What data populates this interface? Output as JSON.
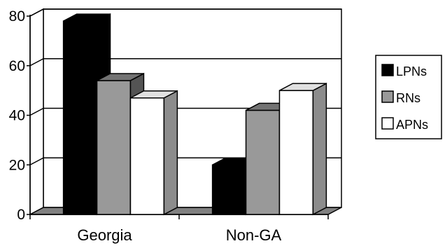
{
  "chart_data": {
    "type": "bar",
    "style": "3d-clustered-column",
    "categories": [
      "Georgia",
      "Non-GA"
    ],
    "series": [
      {
        "name": "LPNs",
        "values": [
          78,
          20
        ],
        "color": "#000000"
      },
      {
        "name": "RNs",
        "values": [
          54,
          42
        ],
        "color": "#999999"
      },
      {
        "name": "APNs",
        "values": [
          47,
          50
        ],
        "color": "#ffffff"
      }
    ],
    "ylim": [
      0,
      80
    ],
    "yticks": [
      0,
      20,
      40,
      60,
      80
    ],
    "grid": true,
    "legend_position": "right"
  }
}
